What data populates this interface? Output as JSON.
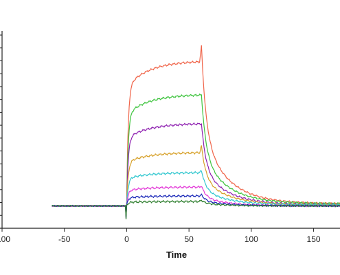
{
  "chart_data": {
    "type": "line",
    "title": "",
    "xlabel": "Time",
    "ylabel": "",
    "xlim": [
      -100,
      180
    ],
    "ylim": [
      -1.0,
      8.3
    ],
    "x_ticks": [
      -100,
      -50,
      0,
      50,
      100,
      150
    ],
    "x_tick_labels": [
      "-100",
      "-50",
      "0",
      "50",
      "100",
      "150"
    ],
    "y_tick_count": 16,
    "grid": false,
    "legend": "none",
    "phases": {
      "baseline_start": -60,
      "association_start": 0,
      "dissociation_start": 60,
      "end": 180
    },
    "series": [
      {
        "color": "#f06449",
        "plateau": 6.5,
        "spike": 7.2,
        "tail": 0.1
      },
      {
        "color": "#3ec43e",
        "plateau": 5.0,
        "spike": 5.0,
        "tail": 0.1
      },
      {
        "color": "#8e1fb0",
        "plateau": 3.7,
        "spike": 3.7,
        "tail": 0.05
      },
      {
        "color": "#d7a12a",
        "plateau": 2.4,
        "spike": 2.7,
        "tail": 0.05
      },
      {
        "color": "#31c7cf",
        "plateau": 1.5,
        "spike": 1.6,
        "tail": 0.05
      },
      {
        "color": "#e33ad8",
        "plateau": 0.85,
        "spike": 0.9,
        "tail": 0.0
      },
      {
        "color": "#1a28b8",
        "plateau": 0.45,
        "spike": 0.5,
        "tail": 0.0
      },
      {
        "color": "#2f7f2f",
        "plateau": 0.2,
        "spike": 0.25,
        "tail": 0.0
      }
    ]
  }
}
